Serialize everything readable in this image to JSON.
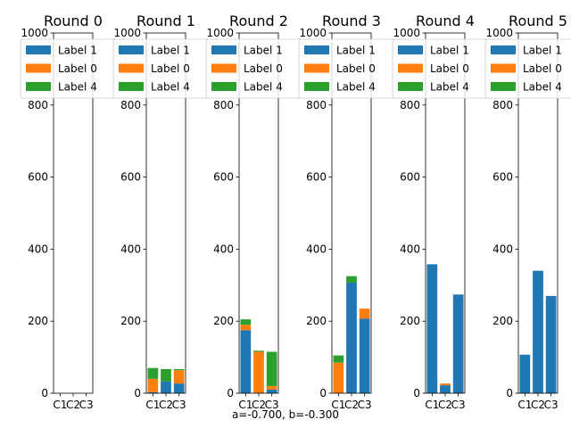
{
  "chart_data": {
    "type": "bar",
    "stacked": true,
    "footer": "a=-0.700, b=-0.300",
    "ylim": [
      0,
      1000
    ],
    "yticks": [
      0,
      200,
      400,
      600,
      800,
      1000
    ],
    "categories": [
      "C1",
      "C2",
      "C3"
    ],
    "legend": {
      "placement": "top",
      "entries": [
        {
          "label": "Label 1",
          "color": "#1f77b4"
        },
        {
          "label": "Label 0",
          "color": "#ff7f0e"
        },
        {
          "label": "Label 4",
          "color": "#2ca02c"
        }
      ]
    },
    "panels": [
      {
        "title": "Round 0",
        "series": [
          {
            "name": "Label 1",
            "values": [
              0,
              0,
              0
            ]
          },
          {
            "name": "Label 0",
            "values": [
              0,
              0,
              0
            ]
          },
          {
            "name": "Label 4",
            "values": [
              0,
              0,
              0
            ]
          }
        ]
      },
      {
        "title": "Round 1",
        "series": [
          {
            "name": "Label 1",
            "values": [
              3,
              33,
              27
            ]
          },
          {
            "name": "Label 0",
            "values": [
              37,
              0,
              37
            ]
          },
          {
            "name": "Label 4",
            "values": [
              30,
              34,
              3
            ]
          }
        ]
      },
      {
        "title": "Round 2",
        "series": [
          {
            "name": "Label 1",
            "values": [
              175,
              0,
              10
            ]
          },
          {
            "name": "Label 0",
            "values": [
              15,
              115,
              10
            ]
          },
          {
            "name": "Label 4",
            "values": [
              15,
              3,
              95
            ]
          }
        ]
      },
      {
        "title": "Round 3",
        "series": [
          {
            "name": "Label 1",
            "values": [
              0,
              307,
              207
            ]
          },
          {
            "name": "Label 0",
            "values": [
              85,
              0,
              28
            ]
          },
          {
            "name": "Label 4",
            "values": [
              20,
              18,
              0
            ]
          }
        ]
      },
      {
        "title": "Round 4",
        "series": [
          {
            "name": "Label 1",
            "values": [
              358,
              22,
              274
            ]
          },
          {
            "name": "Label 0",
            "values": [
              0,
              5,
              0
            ]
          },
          {
            "name": "Label 4",
            "values": [
              0,
              0,
              0
            ]
          }
        ]
      },
      {
        "title": "Round 5",
        "series": [
          {
            "name": "Label 1",
            "values": [
              107,
              340,
              270
            ]
          },
          {
            "name": "Label 0",
            "values": [
              0,
              0,
              0
            ]
          },
          {
            "name": "Label 4",
            "values": [
              0,
              0,
              0
            ]
          }
        ]
      }
    ]
  }
}
